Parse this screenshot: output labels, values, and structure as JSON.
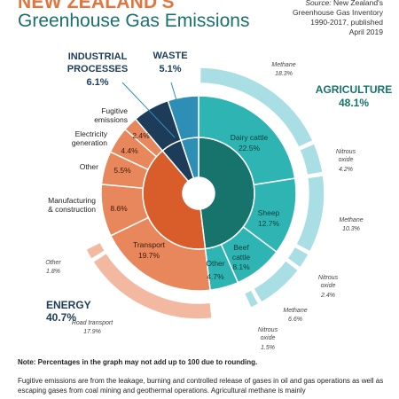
{
  "header": {
    "title_line1": "NEW ZEALAND'S",
    "title_line2": "Greenhouse Gas Emissions",
    "source_label": "Source:",
    "source_lines": [
      "New Zealand's",
      "Greenhouse Gas Inventory",
      "1990-2017, published",
      "April 2019"
    ]
  },
  "note": "Note: Percentages in the graph may not add up to 100 due to rounding.",
  "footnote": "Fugitive emissions are from the leakage, burning and controlled release of gases in oil and gas operations as well as escaping gases from coal mining and geothermal operations. Agricultural methane is mainly",
  "colors": {
    "agriculture_dark": "#16746d",
    "agriculture_mid": "#2fb4b4",
    "agriculture_light": "#a9dfe4",
    "energy_dark": "#d95d2b",
    "energy_mid": "#e8875c",
    "energy_light": "#f2b9a0",
    "industrial_dark": "#1d3c5a",
    "waste_dark": "#2d8fb5"
  },
  "chart_data": {
    "type": "pie",
    "sectors": [
      {
        "key": "agriculture",
        "label": "AGRICULTURE",
        "value": 48.1,
        "value_label": "48.1%",
        "breakdown": [
          {
            "label": "Dairy cattle",
            "value": 22.5,
            "value_label": "22.5%",
            "gases": [
              {
                "label": "Methane",
                "value": 18.3,
                "value_label": "18.3%"
              },
              {
                "label": "Nitrous oxide",
                "value": 4.2,
                "value_label": "4.2%"
              }
            ]
          },
          {
            "label": "Sheep",
            "value": 12.7,
            "value_label": "12.7%",
            "gases": [
              {
                "label": "Methane",
                "value": 10.3,
                "value_label": "10.3%"
              },
              {
                "label": "Nitrous oxide",
                "value": 2.4,
                "value_label": "2.4%"
              }
            ]
          },
          {
            "label": "Beef cattle",
            "value": 8.1,
            "value_label": "8.1%",
            "gases": [
              {
                "label": "Methane",
                "value": 6.6,
                "value_label": "6.6%"
              },
              {
                "label": "Nitrous oxide",
                "value": 1.5,
                "value_label": "1.5%"
              }
            ]
          },
          {
            "label": "Other",
            "value": 4.7,
            "value_label": "4.7%",
            "gases": []
          }
        ]
      },
      {
        "key": "energy",
        "label": "ENERGY",
        "value": 40.7,
        "value_label": "40.7%",
        "breakdown": [
          {
            "label": "Transport",
            "value": 19.7,
            "value_label": "19.7%",
            "gases": [
              {
                "label": "Road transport",
                "value": 17.9,
                "value_label": "17.9%"
              },
              {
                "label": "Other",
                "value": 1.8,
                "value_label": "1.8%"
              }
            ]
          },
          {
            "label": "Manufacturing & construction",
            "value": 8.6,
            "value_label": "8.6%",
            "gases": []
          },
          {
            "label": "Other",
            "value": 5.5,
            "value_label": "5.5%",
            "gases": []
          },
          {
            "label": "Electricity generation",
            "value": 4.4,
            "value_label": "4.4%",
            "gases": []
          },
          {
            "label": "Fugitive emissions",
            "value": 2.4,
            "value_label": "2.4%",
            "gases": []
          }
        ]
      },
      {
        "key": "industrial",
        "label": "INDUSTRIAL PROCESSES",
        "value": 6.1,
        "value_label": "6.1%",
        "breakdown": []
      },
      {
        "key": "waste",
        "label": "WASTE",
        "value": 5.1,
        "value_label": "5.1%",
        "breakdown": []
      }
    ]
  }
}
